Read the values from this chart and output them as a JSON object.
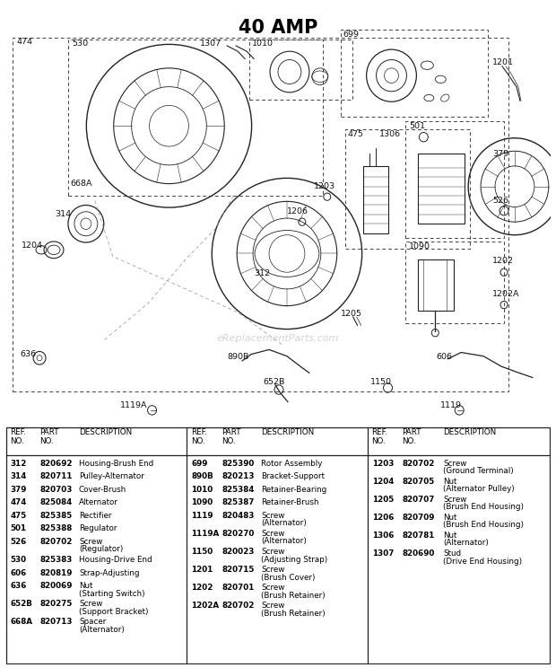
{
  "title": "40 AMP",
  "watermark": "eReplacementParts.com",
  "fig_w": 6.2,
  "fig_h": 7.44,
  "dpi": 100,
  "table": {
    "col1": [
      [
        "312",
        "820692",
        "Housing-Brush End",
        ""
      ],
      [
        "314",
        "820711",
        "Pulley-Alternator",
        ""
      ],
      [
        "379",
        "820703",
        "Cover-Brush",
        ""
      ],
      [
        "474",
        "825084",
        "Alternator",
        ""
      ],
      [
        "475",
        "825385",
        "Rectifier",
        ""
      ],
      [
        "501",
        "825388",
        "Regulator",
        ""
      ],
      [
        "526",
        "820702",
        "Screw",
        "(Regulator)"
      ],
      [
        "530",
        "825383",
        "Housing-Drive End",
        ""
      ],
      [
        "606",
        "820819",
        "Strap-Adjusting",
        ""
      ],
      [
        "636",
        "820069",
        "Nut",
        "(Starting Switch)"
      ],
      [
        "652B",
        "820275",
        "Screw",
        "(Support Bracket)"
      ],
      [
        "668A",
        "820713",
        "Spacer",
        "(Alternator)"
      ]
    ],
    "col2": [
      [
        "699",
        "825390",
        "Rotor Assembly",
        ""
      ],
      [
        "890B",
        "820213",
        "Bracket-Support",
        ""
      ],
      [
        "1010",
        "825384",
        "Retainer-Bearing",
        ""
      ],
      [
        "1090",
        "825387",
        "Retainer-Brush",
        ""
      ],
      [
        "1119",
        "820483",
        "Screw",
        "(Alternator)"
      ],
      [
        "1119A",
        "820270",
        "Screw",
        "(Alternator)"
      ],
      [
        "1150",
        "820023",
        "Screw",
        "(Adjusting Strap)"
      ],
      [
        "1201",
        "820715",
        "Screw",
        "(Brush Cover)"
      ],
      [
        "1202",
        "820701",
        "Screw",
        "(Brush Retainer)"
      ],
      [
        "1202A",
        "820702",
        "Screw",
        "(Brush Retainer)"
      ]
    ],
    "col3": [
      [
        "1203",
        "820702",
        "Screw",
        "(Ground Terminal)"
      ],
      [
        "1204",
        "820705",
        "Nut",
        "(Alternator Pulley)"
      ],
      [
        "1205",
        "820707",
        "Screw",
        "(Brush End Housing)"
      ],
      [
        "1206",
        "820709",
        "Nut",
        "(Brush End Housing)"
      ],
      [
        "1306",
        "820781",
        "Nut",
        "(Alternator)"
      ],
      [
        "1307",
        "820690",
        "Stud",
        "(Drive End Housing)"
      ]
    ]
  }
}
